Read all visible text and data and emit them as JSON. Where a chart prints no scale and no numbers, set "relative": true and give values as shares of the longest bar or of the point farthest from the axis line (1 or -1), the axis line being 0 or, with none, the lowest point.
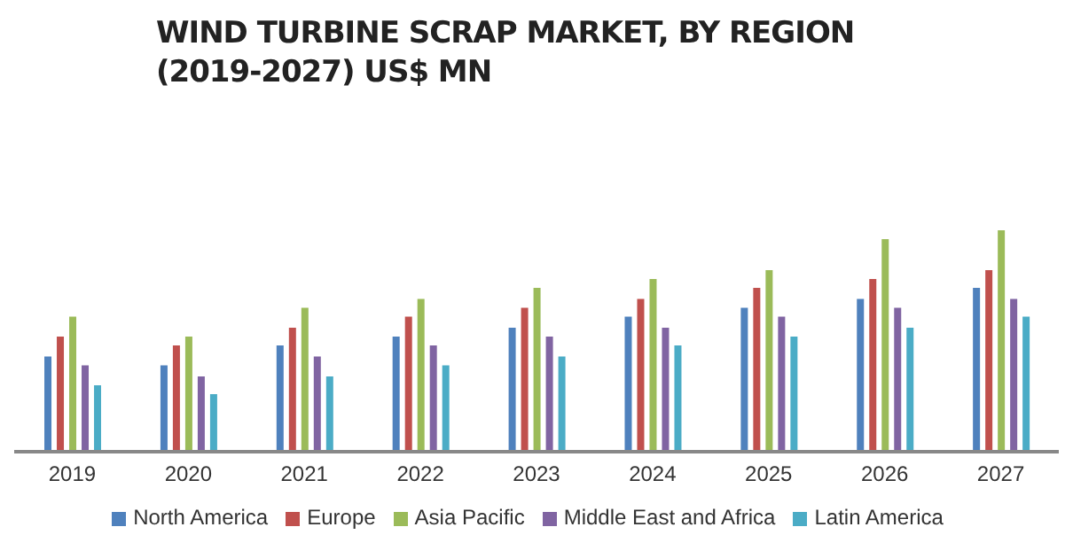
{
  "chart_data": {
    "type": "bar",
    "title": "WIND TURBINE SCRAP MARKET, BY REGION (2019-2027) US$ MN",
    "categories": [
      "2019",
      "2020",
      "2021",
      "2022",
      "2023",
      "2024",
      "2025",
      "2026",
      "2027"
    ],
    "relative": true,
    "legend": "bottom",
    "series": [
      {
        "name": "North America",
        "color": "#4f81bd",
        "values": [
          0.43,
          0.39,
          0.48,
          0.52,
          0.56,
          0.61,
          0.65,
          0.69,
          0.74
        ]
      },
      {
        "name": "Europe",
        "color": "#c0504d",
        "values": [
          0.52,
          0.48,
          0.56,
          0.61,
          0.65,
          0.69,
          0.74,
          0.78,
          0.82
        ]
      },
      {
        "name": "Asia Pacific",
        "color": "#9bbb59",
        "values": [
          0.61,
          0.52,
          0.65,
          0.69,
          0.74,
          0.78,
          0.82,
          0.96,
          1
        ]
      },
      {
        "name": "Middle East and Africa",
        "color": "#8064a2",
        "values": [
          0.39,
          0.34,
          0.43,
          0.48,
          0.52,
          0.56,
          0.61,
          0.65,
          0.69
        ]
      },
      {
        "name": "Latin America",
        "color": "#4bacc6",
        "values": [
          0.3,
          0.26,
          0.34,
          0.39,
          0.43,
          0.48,
          0.52,
          0.56,
          0.61
        ]
      }
    ]
  }
}
